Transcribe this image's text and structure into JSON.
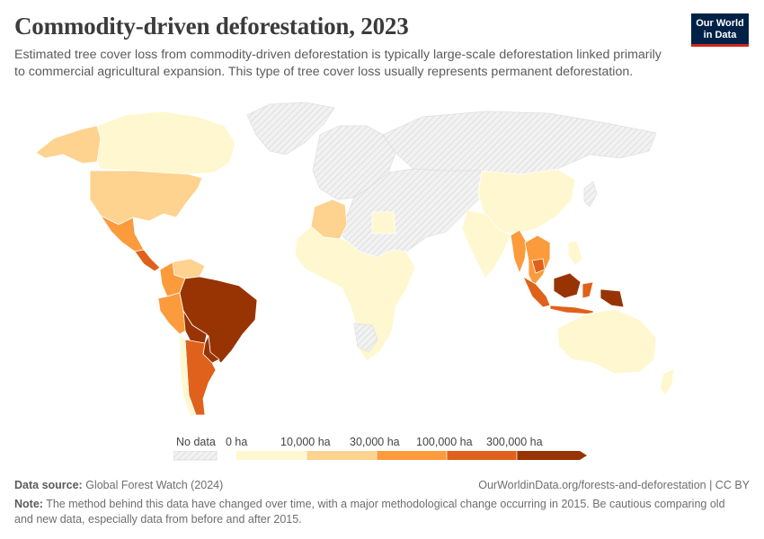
{
  "header": {
    "title": "Commodity-driven deforestation, 2023",
    "subtitle": "Estimated tree cover loss from commodity-driven deforestation is typically large-scale deforestation linked primarily to commercial agricultural expansion. This type of tree cover loss usually represents permanent deforestation."
  },
  "logo": {
    "line1": "Our World",
    "line2": "in Data"
  },
  "colors": {
    "nodata": "#f2f2f2",
    "bin0": "#fff7cf",
    "bin1": "#fed28f",
    "bin2": "#fb9b3c",
    "bin3": "#e0611b",
    "bin4": "#983403",
    "border": "#ffffff"
  },
  "legend": {
    "nodata_label": "No data",
    "labels": [
      "0 ha",
      "10,000 ha",
      "30,000 ha",
      "100,000 ha",
      "300,000 ha"
    ]
  },
  "footer": {
    "source_label": "Data source:",
    "source": "Global Forest Watch (2024)",
    "url": "OurWorldinData.org/forests-and-deforestation | CC BY",
    "note_label": "Note:",
    "note": "The method behind this data have changed over time, with a major methodological change occurring in 2015. Be cautious comparing old and new data, especially data from before and after 2015."
  },
  "map_regions": [
    {
      "name": "Canada",
      "bin": "bin0"
    },
    {
      "name": "Alaska",
      "bin": "bin1"
    },
    {
      "name": "United States",
      "bin": "bin1"
    },
    {
      "name": "Mexico",
      "bin": "bin2"
    },
    {
      "name": "Central America",
      "bin": "bin3"
    },
    {
      "name": "Greenland",
      "bin": "nodata"
    },
    {
      "name": "Venezuela/Guianas",
      "bin": "bin1"
    },
    {
      "name": "Colombia",
      "bin": "bin2"
    },
    {
      "name": "Peru",
      "bin": "bin2"
    },
    {
      "name": "Brazil",
      "bin": "bin4"
    },
    {
      "name": "Bolivia",
      "bin": "bin4"
    },
    {
      "name": "Paraguay",
      "bin": "bin4"
    },
    {
      "name": "Argentina",
      "bin": "bin3"
    },
    {
      "name": "Chile",
      "bin": "bin0"
    },
    {
      "name": "Europe",
      "bin": "nodata"
    },
    {
      "name": "Russia",
      "bin": "nodata"
    },
    {
      "name": "Algeria",
      "bin": "bin1"
    },
    {
      "name": "Egypt",
      "bin": "bin0"
    },
    {
      "name": "Sahara/Middle East",
      "bin": "nodata"
    },
    {
      "name": "Sub-Saharan Africa",
      "bin": "bin0"
    },
    {
      "name": "Namibia/Botswana",
      "bin": "nodata"
    },
    {
      "name": "China",
      "bin": "bin0"
    },
    {
      "name": "India",
      "bin": "bin0"
    },
    {
      "name": "Myanmar",
      "bin": "bin2"
    },
    {
      "name": "Thailand/Indochina",
      "bin": "bin2"
    },
    {
      "name": "Cambodia",
      "bin": "bin3"
    },
    {
      "name": "Sumatra",
      "bin": "bin3"
    },
    {
      "name": "Borneo",
      "bin": "bin4"
    },
    {
      "name": "Sulawesi",
      "bin": "bin3"
    },
    {
      "name": "New Guinea",
      "bin": "bin4"
    },
    {
      "name": "Philippines",
      "bin": "bin0"
    },
    {
      "name": "Australia",
      "bin": "bin0"
    },
    {
      "name": "New Zealand",
      "bin": "bin0"
    }
  ]
}
